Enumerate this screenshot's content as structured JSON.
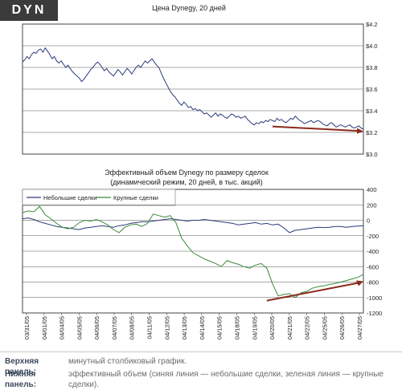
{
  "ticker": "DYN",
  "captions": [
    {
      "label": "Верхняя панель:",
      "text": "минутный столбиковый график."
    },
    {
      "label": "Нижняя панель:",
      "text": "эффективный объем (синяя линия — небольшие сделки, зеленая линия — крупные сделки)."
    }
  ],
  "chart_data": [
    {
      "type": "line",
      "title": "Цена Dynegy, 20 дней",
      "xlabel": "",
      "ylabel": "",
      "ylim": [
        3.0,
        4.2
      ],
      "yticks": [
        "$4.2",
        "$4.0",
        "$3.8",
        "$3.6",
        "$3.4",
        "$3.2",
        "$3.0"
      ],
      "grid": true,
      "colors": {
        "price": "#2a3a7a",
        "arrow": "#8b2a1c"
      },
      "series": [
        {
          "x": [
            0,
            0.4,
            0.8,
            1.2,
            1.6,
            2.0,
            2.4,
            2.8,
            3.2,
            3.6,
            4.0,
            4.4,
            4.8,
            5.2,
            5.6,
            6.0,
            6.4,
            6.8,
            7.2,
            7.6,
            8.0,
            8.4,
            8.8,
            9.2,
            9.6,
            10.0,
            10.4,
            10.8,
            11.2,
            11.6,
            12.0,
            12.4,
            12.8,
            13.2,
            13.6,
            14.0,
            14.4,
            14.8,
            15.2,
            15.6,
            16.0,
            16.4,
            16.8,
            17.2,
            17.6,
            18.0,
            18.4,
            18.8,
            19.2,
            19.6,
            20.0,
            20.4,
            20.8,
            21.2,
            21.6,
            22.0,
            22.4,
            22.8,
            23.2,
            23.6,
            24.0,
            24.4,
            24.8,
            25.2,
            25.6,
            26.0,
            26.4,
            26.8,
            27.2,
            27.6,
            28.0,
            28.4,
            28.8,
            29.2,
            29.6,
            30.0,
            30.4,
            30.8,
            31.2,
            31.6,
            32.0,
            32.4,
            32.8,
            33.2,
            33.6,
            34.0,
            34.4,
            34.8,
            35.2,
            35.6,
            36.0,
            36.4,
            36.8,
            37.2,
            37.6,
            38.0,
            38.4,
            38.8,
            39.2,
            39.6,
            40.0,
            40.4,
            40.8,
            41.2,
            41.6,
            42.0,
            42.4,
            42.8,
            43.2,
            43.6,
            44.0,
            44.4,
            44.8,
            45.2,
            45.6,
            46.0,
            46.4,
            46.8,
            47.2,
            47.6,
            48.0,
            48.4,
            48.8,
            49.2,
            49.6,
            50.0,
            50.4,
            50.8,
            51.2,
            51.6,
            52.0,
            52.4,
            52.8,
            53.2,
            53.6,
            54.0,
            54.4,
            54.8,
            55.2,
            55.6,
            56.0,
            56.4,
            56.8,
            57.2,
            57.6,
            58.0,
            58.4,
            58.8,
            59.2,
            59.6,
            60.0
          ],
          "values": [
            3.85,
            3.87,
            3.9,
            3.88,
            3.92,
            3.94,
            3.93,
            3.96,
            3.97,
            3.94,
            3.98,
            3.95,
            3.92,
            3.88,
            3.9,
            3.86,
            3.84,
            3.86,
            3.83,
            3.8,
            3.82,
            3.79,
            3.76,
            3.74,
            3.72,
            3.7,
            3.67,
            3.69,
            3.72,
            3.75,
            3.78,
            3.8,
            3.83,
            3.85,
            3.83,
            3.8,
            3.77,
            3.79,
            3.76,
            3.74,
            3.72,
            3.75,
            3.78,
            3.76,
            3.73,
            3.76,
            3.79,
            3.77,
            3.74,
            3.77,
            3.8,
            3.82,
            3.8,
            3.83,
            3.86,
            3.84,
            3.86,
            3.88,
            3.85,
            3.82,
            3.8,
            3.75,
            3.7,
            3.66,
            3.62,
            3.58,
            3.55,
            3.53,
            3.5,
            3.47,
            3.45,
            3.48,
            3.46,
            3.43,
            3.44,
            3.41,
            3.42,
            3.4,
            3.41,
            3.39,
            3.37,
            3.38,
            3.36,
            3.34,
            3.36,
            3.38,
            3.35,
            3.37,
            3.36,
            3.34,
            3.33,
            3.35,
            3.37,
            3.36,
            3.34,
            3.35,
            3.33,
            3.34,
            3.35,
            3.32,
            3.3,
            3.28,
            3.27,
            3.29,
            3.28,
            3.3,
            3.29,
            3.31,
            3.3,
            3.32,
            3.31,
            3.3,
            3.33,
            3.31,
            3.32,
            3.3,
            3.29,
            3.31,
            3.33,
            3.32,
            3.35,
            3.33,
            3.31,
            3.3,
            3.28,
            3.29,
            3.3,
            3.31,
            3.29,
            3.3,
            3.31,
            3.3,
            3.28,
            3.27,
            3.26,
            3.28,
            3.29,
            3.27,
            3.25,
            3.26,
            3.27,
            3.26,
            3.25,
            3.26,
            3.27,
            3.25,
            3.24,
            3.25,
            3.26,
            3.24,
            3.23
          ]
        }
      ],
      "arrow": {
        "from": [
          44,
          3.255
        ],
        "to": [
          60,
          3.21
        ]
      }
    },
    {
      "type": "line",
      "title": "Эффективный объем Dynegy по размеру сделок",
      "subtitle": "(динамический режим, 20 дней, в тыс. акций)",
      "xlabel": "",
      "ylabel": "",
      "ylim": [
        -1200,
        400
      ],
      "yticks": [
        "400",
        "200",
        "0",
        "-200",
        "-400",
        "-600",
        "-800",
        "-1000",
        "-1200"
      ],
      "grid": true,
      "legend_position": "top-left",
      "categories": [
        "03/31/05",
        "04/01/05",
        "04/04/05",
        "04/05/05",
        "04/06/05",
        "04/07/05",
        "04/08/05",
        "04/11/05",
        "04/12/05",
        "04/13/05",
        "04/14/05",
        "04/15/05",
        "04/18/05",
        "04/19/05",
        "04/20/05",
        "04/21/05",
        "04/22/05",
        "04/25/05",
        "04/26/05",
        "04/27/05"
      ],
      "series": [
        {
          "name": "Небольшие сделки",
          "color": "#2a3a7a",
          "x": [
            0,
            1,
            2,
            3,
            4,
            5,
            6,
            7,
            8,
            9,
            10,
            11,
            12,
            13,
            14,
            15,
            16,
            17,
            18,
            19,
            20,
            21,
            22,
            23,
            24,
            25,
            26,
            27,
            28,
            29,
            30,
            31,
            32,
            33,
            34,
            35,
            36,
            37,
            38,
            39,
            40,
            41,
            42,
            43,
            44,
            45,
            46,
            47,
            48,
            49,
            50,
            51,
            52,
            53,
            54,
            55,
            56,
            57,
            58,
            59,
            60
          ],
          "values": [
            20,
            30,
            10,
            -20,
            -40,
            -60,
            -80,
            -90,
            -100,
            -110,
            -120,
            -100,
            -90,
            -80,
            -70,
            -80,
            -90,
            -70,
            -60,
            -40,
            -30,
            -20,
            -20,
            -10,
            0,
            10,
            20,
            10,
            0,
            -10,
            0,
            0,
            10,
            0,
            -10,
            -20,
            -30,
            -40,
            -60,
            -50,
            -40,
            -30,
            -50,
            -40,
            -60,
            -50,
            -100,
            -160,
            -130,
            -120,
            -110,
            -100,
            -90,
            -95,
            -90,
            -80,
            -80,
            -90,
            -80,
            -75,
            -70
          ]
        },
        {
          "name": "Крупные сделки",
          "color": "#3a8a3a",
          "x": [
            0,
            1,
            2,
            3,
            4,
            5,
            6,
            7,
            8,
            9,
            10,
            11,
            12,
            13,
            14,
            15,
            16,
            17,
            18,
            19,
            20,
            21,
            22,
            23,
            24,
            25,
            26,
            27,
            28,
            29,
            30,
            31,
            32,
            33,
            34,
            35,
            36,
            37,
            38,
            39,
            40,
            41,
            42,
            43,
            44,
            45,
            46,
            47,
            48,
            49,
            50,
            51,
            52,
            53,
            54,
            55,
            56,
            57,
            58,
            59,
            60
          ],
          "values": [
            100,
            120,
            110,
            180,
            70,
            20,
            -40,
            -90,
            -110,
            -90,
            -30,
            0,
            -10,
            10,
            -20,
            -60,
            -120,
            -160,
            -90,
            -60,
            -50,
            -80,
            -40,
            80,
            60,
            40,
            60,
            -30,
            -230,
            -330,
            -420,
            -460,
            -500,
            -530,
            -560,
            -600,
            -520,
            -550,
            -570,
            -600,
            -620,
            -580,
            -560,
            -620,
            -820,
            -980,
            -960,
            -950,
            -1000,
            -940,
            -920,
            -880,
            -860,
            -850,
            -830,
            -820,
            -800,
            -780,
            -760,
            -740,
            -700
          ]
        }
      ],
      "arrow": {
        "from": [
          43,
          -1040
        ],
        "to": [
          60,
          -790
        ]
      }
    }
  ]
}
